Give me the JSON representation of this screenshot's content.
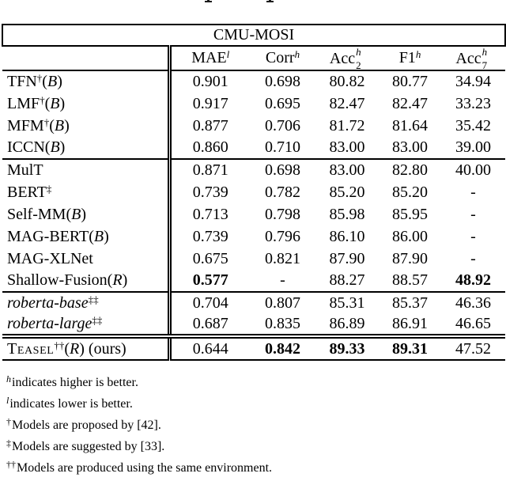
{
  "page": {
    "background": "#ffffff",
    "text_color": "#000000",
    "border_color": "#000000"
  },
  "table": {
    "title": "CMU-MOSI",
    "columns": [
      {
        "base": "MAE",
        "sup": "l",
        "sub": null
      },
      {
        "base": "Corr",
        "sup": "h",
        "sub": null
      },
      {
        "base": "Acc",
        "sup": "h",
        "sub": "2"
      },
      {
        "base": "F1",
        "sup": "h",
        "sub": null
      },
      {
        "base": "Acc",
        "sup": "h",
        "sub": "7"
      }
    ],
    "groups": [
      {
        "separator": "none",
        "rows": [
          {
            "name_parts": [
              {
                "t": "TFN"
              },
              {
                "sup": "†"
              },
              {
                "t": "("
              },
              {
                "i": "B"
              },
              {
                "t": ")"
              }
            ],
            "values": [
              {
                "v": "0.901"
              },
              {
                "v": "0.698"
              },
              {
                "v": "80.82"
              },
              {
                "v": "80.77"
              },
              {
                "v": "34.94"
              }
            ]
          },
          {
            "name_parts": [
              {
                "t": "LMF"
              },
              {
                "sup": "†"
              },
              {
                "t": "("
              },
              {
                "i": "B"
              },
              {
                "t": ")"
              }
            ],
            "values": [
              {
                "v": "0.917"
              },
              {
                "v": "0.695"
              },
              {
                "v": "82.47"
              },
              {
                "v": "82.47"
              },
              {
                "v": "33.23"
              }
            ]
          },
          {
            "name_parts": [
              {
                "t": "MFM"
              },
              {
                "sup": "†"
              },
              {
                "t": "("
              },
              {
                "i": "B"
              },
              {
                "t": ")"
              }
            ],
            "values": [
              {
                "v": "0.877"
              },
              {
                "v": "0.706"
              },
              {
                "v": "81.72"
              },
              {
                "v": "81.64"
              },
              {
                "v": "35.42"
              }
            ]
          },
          {
            "name_parts": [
              {
                "t": "ICCN("
              },
              {
                "i": "B"
              },
              {
                "t": ")"
              }
            ],
            "values": [
              {
                "v": "0.860"
              },
              {
                "v": "0.710"
              },
              {
                "v": "83.00"
              },
              {
                "v": "83.00"
              },
              {
                "v": "39.00"
              }
            ]
          }
        ]
      },
      {
        "separator": "single",
        "rows": [
          {
            "name_parts": [
              {
                "t": "MulT"
              }
            ],
            "values": [
              {
                "v": "0.871"
              },
              {
                "v": "0.698"
              },
              {
                "v": "83.00"
              },
              {
                "v": "82.80"
              },
              {
                "v": "40.00"
              }
            ]
          },
          {
            "name_parts": [
              {
                "t": "BERT"
              },
              {
                "sup": "‡"
              }
            ],
            "values": [
              {
                "v": "0.739"
              },
              {
                "v": "0.782"
              },
              {
                "v": "85.20"
              },
              {
                "v": "85.20"
              },
              {
                "v": "-"
              }
            ]
          },
          {
            "name_parts": [
              {
                "t": "Self-MM("
              },
              {
                "i": "B"
              },
              {
                "t": ")"
              }
            ],
            "values": [
              {
                "v": "0.713"
              },
              {
                "v": "0.798"
              },
              {
                "v": "85.98"
              },
              {
                "v": "85.95"
              },
              {
                "v": "-"
              }
            ]
          },
          {
            "name_parts": [
              {
                "t": "MAG-BERT("
              },
              {
                "i": "B"
              },
              {
                "t": ")"
              }
            ],
            "values": [
              {
                "v": "0.739"
              },
              {
                "v": "0.796"
              },
              {
                "v": "86.10"
              },
              {
                "v": "86.00"
              },
              {
                "v": "-"
              }
            ]
          },
          {
            "name_parts": [
              {
                "t": "MAG-XLNet"
              }
            ],
            "values": [
              {
                "v": "0.675"
              },
              {
                "v": "0.821"
              },
              {
                "v": "87.90"
              },
              {
                "v": "87.90"
              },
              {
                "v": "-"
              }
            ]
          },
          {
            "name_parts": [
              {
                "t": "Shallow-Fusion("
              },
              {
                "i": "R"
              },
              {
                "t": ")"
              }
            ],
            "values": [
              {
                "v": "0.577",
                "b": true
              },
              {
                "v": "-"
              },
              {
                "v": "88.27"
              },
              {
                "v": "88.57"
              },
              {
                "v": "48.92",
                "b": true
              }
            ]
          }
        ]
      },
      {
        "separator": "single",
        "rows": [
          {
            "name_parts": [
              {
                "i": "roberta-base"
              },
              {
                "sup": "‡‡"
              }
            ],
            "values": [
              {
                "v": "0.704"
              },
              {
                "v": "0.807"
              },
              {
                "v": "85.31"
              },
              {
                "v": "85.37"
              },
              {
                "v": "46.36"
              }
            ]
          },
          {
            "name_parts": [
              {
                "i": "roberta-large"
              },
              {
                "sup": "‡‡"
              }
            ],
            "values": [
              {
                "v": "0.687"
              },
              {
                "v": "0.835"
              },
              {
                "v": "86.89"
              },
              {
                "v": "86.91"
              },
              {
                "v": "46.65"
              }
            ]
          }
        ]
      },
      {
        "separator": "double",
        "rows": [
          {
            "name_parts": [
              {
                "sc": "Teasel"
              },
              {
                "sup": "††"
              },
              {
                "t": "("
              },
              {
                "i": "R"
              },
              {
                "t": ") (ours)"
              }
            ],
            "values": [
              {
                "v": "0.644"
              },
              {
                "v": "0.842",
                "b": true
              },
              {
                "v": "89.33",
                "b": true
              },
              {
                "v": "89.31",
                "b": true
              },
              {
                "v": "47.52"
              }
            ]
          }
        ]
      }
    ]
  },
  "footnotes": [
    {
      "sup": "h",
      "italic_sup": true,
      "text": "indicates higher is better."
    },
    {
      "sup": "l",
      "italic_sup": true,
      "text": "indicates lower is better."
    },
    {
      "sup": "†",
      "italic_sup": false,
      "text": "Models are proposed by [42]."
    },
    {
      "sup": "‡",
      "italic_sup": false,
      "text": "Models are suggested by [33]."
    },
    {
      "sup": "††",
      "italic_sup": false,
      "text": "Models are produced using the same environment."
    }
  ]
}
